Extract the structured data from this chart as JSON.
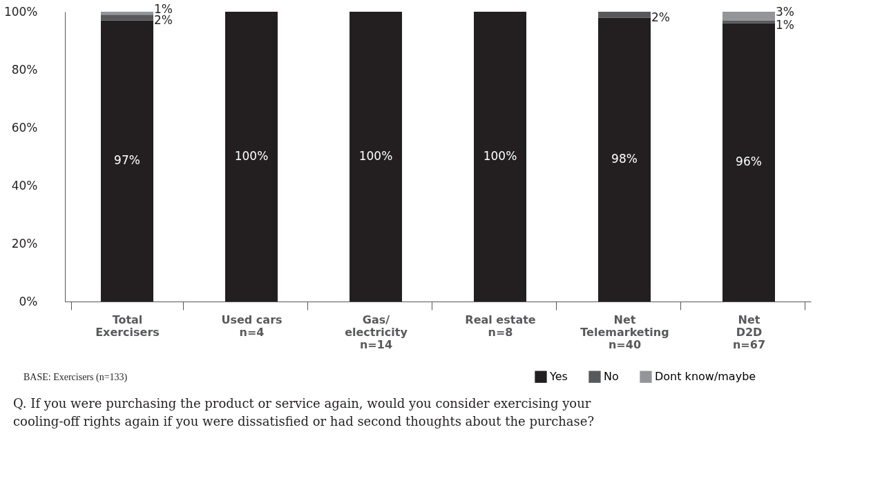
{
  "chart_data": {
    "type": "bar",
    "stacked": true,
    "categories": [
      "Total\nExercisers",
      "Used cars\nn=4",
      "Gas/\nelectricity\nn=14",
      "Real estate\nn=8",
      "Net\nTelemarketing\nn=40",
      "Net\nD2D\nn=67"
    ],
    "series": [
      {
        "name": "Yes",
        "color": "#231f20",
        "values": [
          97,
          100,
          100,
          100,
          98,
          96
        ],
        "value_labels": [
          "97%",
          "100%",
          "100%",
          "100%",
          "98%",
          "96%"
        ]
      },
      {
        "name": "No",
        "color": "#58595b",
        "values": [
          2,
          0,
          0,
          0,
          2,
          1
        ],
        "value_labels": [
          "2%",
          null,
          null,
          null,
          "2%",
          "1%"
        ]
      },
      {
        "name": "Dont know/maybe",
        "color": "#939598",
        "values": [
          1,
          0,
          0,
          0,
          0,
          3
        ],
        "value_labels": [
          "1%",
          null,
          null,
          null,
          null,
          "3%"
        ]
      }
    ],
    "ylim": [
      0,
      100
    ],
    "yticks": [
      {
        "value": 0,
        "label": "0%"
      },
      {
        "value": 20,
        "label": "20%"
      },
      {
        "value": 40,
        "label": "40%"
      },
      {
        "value": 60,
        "label": "60%"
      },
      {
        "value": 80,
        "label": "80%"
      },
      {
        "value": 100,
        "label": "100%"
      }
    ],
    "grid": false,
    "legend": "bottom right",
    "annotations": [
      "BASE: Exercisers (n=133)",
      "Q. If you were purchasing the product or service again, would you consider exercising your\n   cooling-off rights again if you were dissatisfied or had second thoughts about the purchase?"
    ]
  }
}
